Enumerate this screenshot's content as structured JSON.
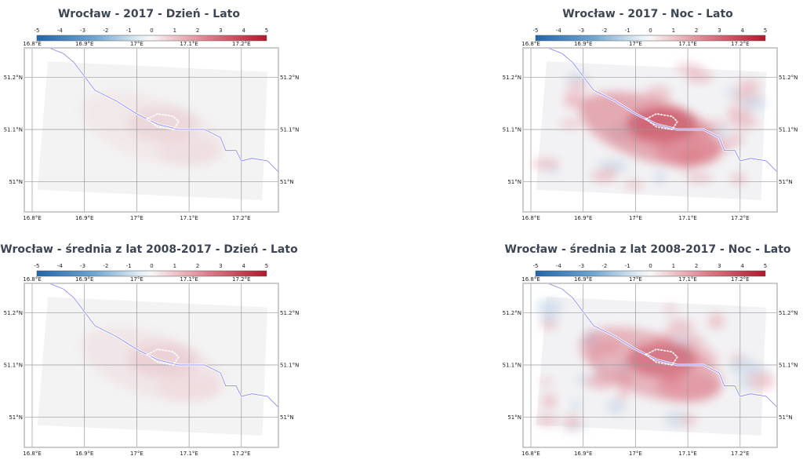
{
  "colors": {
    "cmap_low": "#2166ac",
    "cmap_mid": "#f7f7f7",
    "cmap_high": "#b2182b",
    "river": "#7b7bff",
    "grid": "#9a9a9a",
    "frame": "#bbbbbb"
  },
  "colorbar": {
    "ticks": [
      "-5",
      "-4",
      "-3",
      "-2",
      "-1",
      "0",
      "1",
      "2",
      "3",
      "4",
      "5"
    ],
    "range": [
      -5,
      5
    ],
    "colormap": "blue-white-red"
  },
  "lon_ticks": [
    "16.8°E",
    "16.9°E",
    "17°E",
    "17.1°E",
    "17.2°E"
  ],
  "lat_ticks": [
    "51.2°N",
    "51.1°N",
    "51°N"
  ],
  "panels": [
    {
      "title": "Wrocław - 2017 - Dzień - Lato",
      "mode": "day",
      "intensity": 0.35
    },
    {
      "title": "Wrocław - 2017 - Noc - Lato",
      "mode": "night",
      "intensity": 1.0
    },
    {
      "title": "Wrocław - średnia z lat 2008-2017 - Dzień - Lato",
      "mode": "day",
      "intensity": 0.4
    },
    {
      "title": "Wrocław - średnia z lat 2008-2017 - Noc - Lato",
      "mode": "night",
      "intensity": 0.85
    }
  ]
}
